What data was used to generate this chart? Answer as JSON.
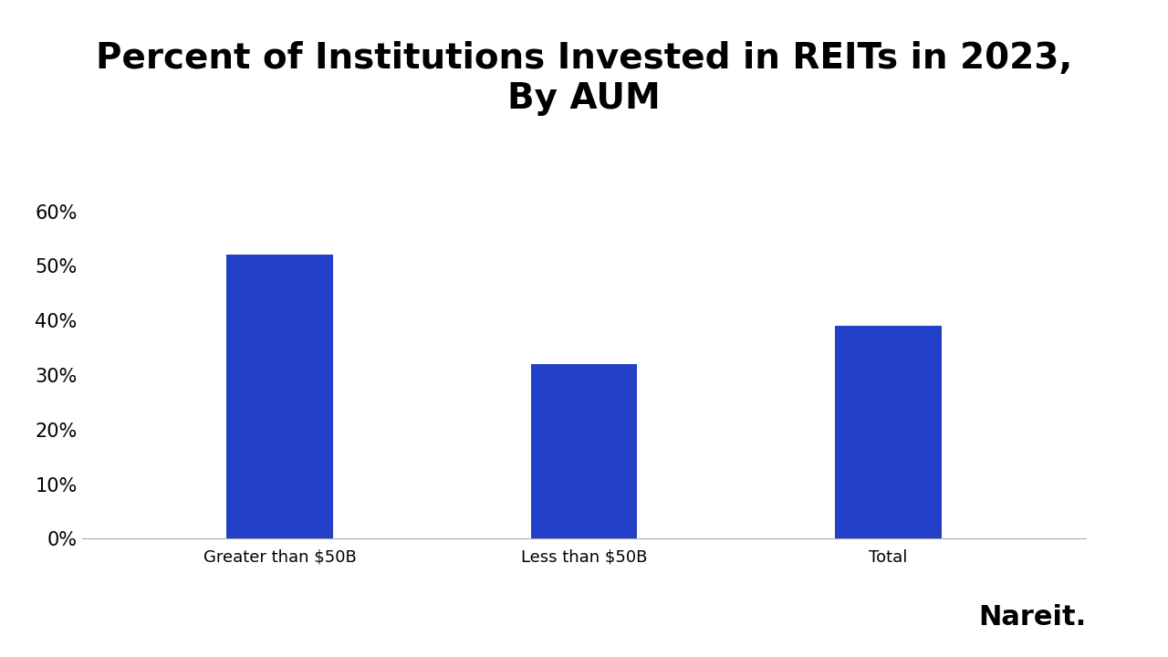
{
  "categories": [
    "Greater than $50B",
    "Less than $50B",
    "Total"
  ],
  "values": [
    0.52,
    0.32,
    0.39
  ],
  "bar_color": "#2341C8",
  "title_line1": "Percent of Institutions Invested in REITs in 2023,",
  "title_line2": "By AUM",
  "ylim": [
    0,
    0.65
  ],
  "yticks": [
    0.0,
    0.1,
    0.2,
    0.3,
    0.4,
    0.5,
    0.6
  ],
  "ytick_labels": [
    "0%",
    "10%",
    "20%",
    "30%",
    "40%",
    "50%",
    "60%"
  ],
  "background_color": "#FFFFFF",
  "title_fontsize": 28,
  "tick_fontsize": 15,
  "xtick_fontsize": 13,
  "nareit_text": "Nareit.",
  "bar_width": 0.35,
  "xlim": [
    -0.65,
    2.65
  ]
}
